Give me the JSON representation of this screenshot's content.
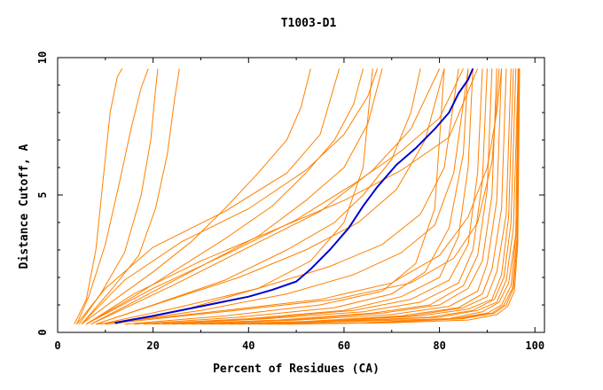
{
  "chart_data": {
    "type": "line",
    "title": "T1003-D1",
    "xlabel": "Percent of Residues (CA)",
    "ylabel": "Distance Cutoff, A",
    "xlim": [
      0,
      102
    ],
    "ylim": [
      0,
      10
    ],
    "x_ticks": [
      "0",
      "20",
      "40",
      "60",
      "80",
      "100"
    ],
    "y_ticks": [
      "0",
      "5",
      "10"
    ],
    "grid": false,
    "colors": {
      "others": "#ff8000",
      "highlight": "#0000cc",
      "axis": "#000000"
    },
    "highlight_series": {
      "x": [
        12,
        20,
        30,
        40,
        45,
        50,
        53,
        57,
        61,
        64,
        67,
        71,
        75,
        79,
        82,
        84,
        86,
        87
      ],
      "y": [
        0.35,
        0.6,
        0.95,
        1.3,
        1.55,
        1.85,
        2.3,
        3.0,
        3.8,
        4.6,
        5.3,
        6.1,
        6.7,
        7.4,
        8.0,
        8.7,
        9.2,
        9.6
      ]
    },
    "series": [
      {
        "x": [
          3.5,
          6,
          8,
          9.5,
          11,
          12.5,
          13.5
        ],
        "y": [
          0.3,
          1.2,
          3.0,
          5.5,
          8.0,
          9.3,
          9.6
        ]
      },
      {
        "x": [
          4,
          6.5,
          10,
          13,
          15.5,
          17.5,
          19
        ],
        "y": [
          0.3,
          1.3,
          3.2,
          5.5,
          7.5,
          8.9,
          9.6
        ]
      },
      {
        "x": [
          4.5,
          9,
          14,
          17.5,
          19.5,
          20.5,
          21
        ],
        "y": [
          0.3,
          1.4,
          2.9,
          5.0,
          7.0,
          8.8,
          9.6
        ]
      },
      {
        "x": [
          5,
          11,
          17,
          20.5,
          23,
          24.5,
          25.5
        ],
        "y": [
          0.3,
          1.5,
          2.8,
          4.5,
          6.5,
          8.5,
          9.6
        ]
      },
      {
        "x": [
          5,
          12,
          20,
          28,
          35,
          42,
          48,
          51,
          53
        ],
        "y": [
          0.3,
          1.2,
          2.2,
          3.3,
          4.5,
          5.8,
          7.0,
          8.2,
          9.6
        ]
      },
      {
        "x": [
          6,
          15,
          25,
          35,
          45,
          52,
          58,
          62,
          64
        ],
        "y": [
          0.3,
          1.2,
          2.3,
          3.4,
          4.6,
          5.8,
          7.0,
          8.3,
          9.6
        ]
      },
      {
        "x": [
          7,
          18,
          30,
          42,
          52,
          60,
          65,
          68
        ],
        "y": [
          0.3,
          1.3,
          2.4,
          3.5,
          4.8,
          6.0,
          7.6,
          9.6
        ]
      },
      {
        "x": [
          8,
          20,
          35,
          48,
          58,
          64,
          70,
          74,
          76
        ],
        "y": [
          0.3,
          1.0,
          1.9,
          3.0,
          4.0,
          5.0,
          6.3,
          8.0,
          9.6
        ]
      },
      {
        "x": [
          8,
          22,
          38,
          52,
          63,
          71,
          77,
          81
        ],
        "y": [
          0.3,
          1.1,
          2.0,
          3.0,
          4.0,
          5.2,
          7.0,
          9.6
        ]
      },
      {
        "x": [
          9,
          25,
          42,
          57,
          68,
          76,
          81,
          84
        ],
        "y": [
          0.3,
          0.9,
          1.6,
          2.4,
          3.2,
          4.3,
          6.0,
          9.6
        ]
      },
      {
        "x": [
          10,
          30,
          48,
          62,
          72,
          79,
          83,
          86
        ],
        "y": [
          0.3,
          0.8,
          1.4,
          2.1,
          2.9,
          3.9,
          5.8,
          9.6
        ]
      },
      {
        "x": [
          12,
          28,
          42,
          53,
          60,
          64,
          66
        ],
        "y": [
          0.3,
          0.9,
          1.6,
          2.6,
          4.0,
          6.0,
          9.6
        ]
      },
      {
        "x": [
          14,
          35,
          55,
          68,
          75,
          79,
          80,
          81
        ],
        "y": [
          0.3,
          0.6,
          1.0,
          1.5,
          2.5,
          4.5,
          7.0,
          9.6
        ]
      },
      {
        "x": [
          16,
          38,
          58,
          70,
          77,
          82,
          85,
          86
        ],
        "y": [
          0.3,
          0.55,
          0.9,
          1.4,
          2.2,
          3.8,
          6.5,
          9.6
        ]
      },
      {
        "x": [
          18,
          40,
          60,
          72,
          80,
          84,
          86,
          87
        ],
        "y": [
          0.3,
          0.5,
          0.8,
          1.3,
          2.0,
          3.5,
          6.0,
          9.6
        ]
      },
      {
        "x": [
          20,
          42,
          62,
          74,
          82,
          86,
          88,
          89
        ],
        "y": [
          0.3,
          0.5,
          0.8,
          1.2,
          1.9,
          3.2,
          5.8,
          9.6
        ]
      },
      {
        "x": [
          22,
          44,
          64,
          76,
          84,
          87,
          89,
          90
        ],
        "y": [
          0.3,
          0.5,
          0.75,
          1.1,
          1.8,
          3.0,
          5.5,
          9.6
        ]
      },
      {
        "x": [
          24,
          46,
          66,
          78,
          85,
          88,
          90,
          91
        ],
        "y": [
          0.3,
          0.45,
          0.7,
          1.0,
          1.7,
          2.8,
          5.2,
          9.6
        ]
      },
      {
        "x": [
          26,
          48,
          68,
          80,
          86,
          89,
          91,
          92
        ],
        "y": [
          0.3,
          0.45,
          0.7,
          1.0,
          1.6,
          2.6,
          5.0,
          9.6
        ]
      },
      {
        "x": [
          28,
          50,
          70,
          82,
          88,
          90,
          92,
          93
        ],
        "y": [
          0.3,
          0.45,
          0.65,
          0.95,
          1.5,
          2.5,
          4.8,
          9.6
        ]
      },
      {
        "x": [
          30,
          52,
          72,
          84,
          89,
          91,
          93,
          94
        ],
        "y": [
          0.3,
          0.4,
          0.6,
          0.9,
          1.4,
          2.3,
          4.5,
          9.6
        ]
      },
      {
        "x": [
          32,
          54,
          74,
          85,
          90,
          92,
          94,
          95
        ],
        "y": [
          0.3,
          0.4,
          0.6,
          0.9,
          1.3,
          2.2,
          4.3,
          9.6
        ]
      },
      {
        "x": [
          34,
          56,
          76,
          86,
          91,
          93,
          94.5,
          95.5
        ],
        "y": [
          0.3,
          0.4,
          0.6,
          0.85,
          1.2,
          2.1,
          4.2,
          9.6
        ]
      },
      {
        "x": [
          36,
          58,
          78,
          87,
          91.5,
          93.5,
          95,
          96
        ],
        "y": [
          0.3,
          0.4,
          0.55,
          0.8,
          1.2,
          2.0,
          4.0,
          9.6
        ]
      },
      {
        "x": [
          38,
          60,
          80,
          88,
          92,
          94,
          95.5,
          96.5
        ],
        "y": [
          0.3,
          0.4,
          0.55,
          0.8,
          1.1,
          1.9,
          3.8,
          9.6
        ]
      },
      {
        "x": [
          40,
          62,
          82,
          89,
          92.5,
          94.5,
          96,
          96.5
        ],
        "y": [
          0.3,
          0.4,
          0.5,
          0.75,
          1.1,
          1.8,
          3.6,
          9.6
        ]
      },
      {
        "x": [
          42,
          64,
          83,
          90,
          93,
          95,
          96,
          96.5
        ],
        "y": [
          0.3,
          0.35,
          0.5,
          0.7,
          1.0,
          1.7,
          3.5,
          9.6
        ]
      },
      {
        "x": [
          44,
          66,
          84,
          91,
          93.5,
          95.3,
          96.2,
          96.6
        ],
        "y": [
          0.3,
          0.35,
          0.5,
          0.7,
          1.0,
          1.6,
          3.4,
          9.6
        ]
      },
      {
        "x": [
          46,
          68,
          85,
          91.5,
          94,
          95.5,
          96.3,
          96.7
        ],
        "y": [
          0.3,
          0.35,
          0.5,
          0.7,
          1.0,
          1.6,
          3.3,
          9.6
        ]
      },
      {
        "x": [
          48,
          70,
          86,
          92,
          94.3,
          95.7,
          96.4,
          96.8
        ],
        "y": [
          0.3,
          0.35,
          0.45,
          0.65,
          0.95,
          1.5,
          3.2,
          9.6
        ]
      },
      {
        "x": [
          8,
          30,
          55,
          70,
          80,
          86,
          90,
          92,
          93
        ],
        "y": [
          0.3,
          0.7,
          1.2,
          1.8,
          2.8,
          4.2,
          6.0,
          8.0,
          9.6
        ]
      },
      {
        "x": [
          10,
          32,
          58,
          74,
          83,
          88,
          91,
          92.5
        ],
        "y": [
          0.3,
          0.7,
          1.2,
          1.8,
          2.7,
          4.0,
          6.2,
          9.6
        ]
      },
      {
        "x": [
          6,
          16,
          30,
          45,
          60,
          72,
          82,
          88
        ],
        "y": [
          0.3,
          1.4,
          2.6,
          3.7,
          4.8,
          5.9,
          7.1,
          9.6
        ]
      },
      {
        "x": [
          6,
          20,
          36,
          50,
          62,
          72,
          80,
          85
        ],
        "y": [
          0.3,
          1.6,
          2.9,
          4.1,
          5.4,
          6.6,
          7.8,
          9.6
        ]
      },
      {
        "x": [
          7,
          24,
          40,
          55,
          66,
          74,
          80
        ],
        "y": [
          0.3,
          1.7,
          3.1,
          4.4,
          5.9,
          7.4,
          9.6
        ]
      },
      {
        "x": [
          5,
          14,
          26,
          40,
          52,
          60,
          65,
          67
        ],
        "y": [
          0.3,
          1.9,
          3.3,
          4.5,
          5.9,
          7.2,
          8.6,
          9.6
        ]
      },
      {
        "x": [
          4,
          10,
          20,
          35,
          48,
          55,
          59
        ],
        "y": [
          0.3,
          1.6,
          3.1,
          4.4,
          5.8,
          7.2,
          9.6
        ]
      }
    ]
  }
}
